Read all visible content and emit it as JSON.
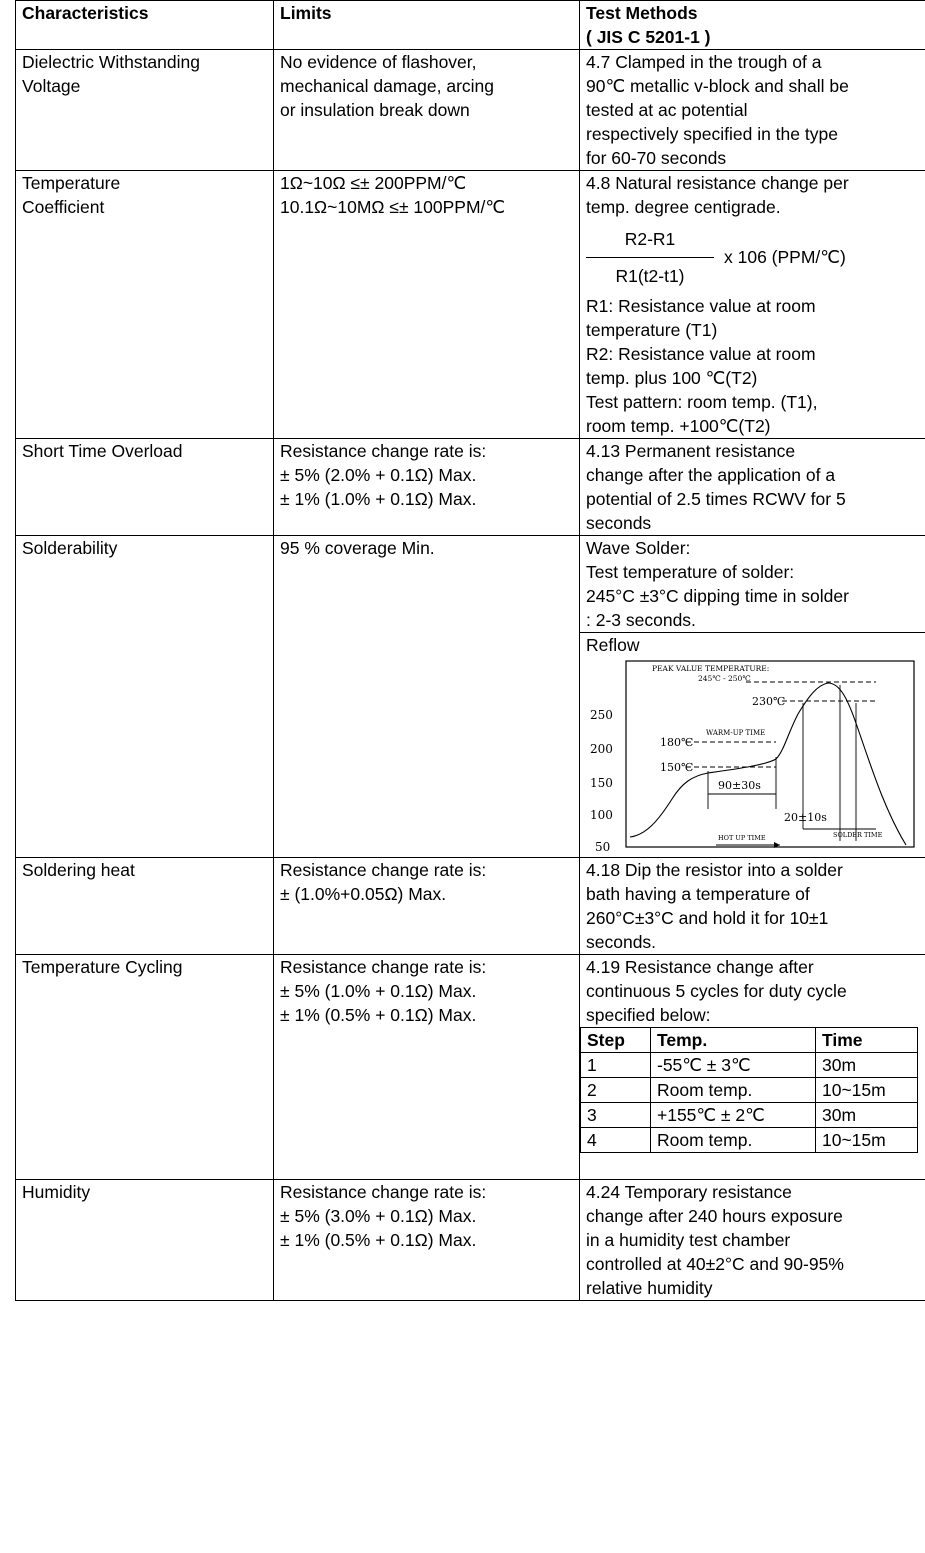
{
  "header": {
    "characteristics": "Characteristics",
    "limits": "Limits",
    "test_methods_1": "Test Methods",
    "test_methods_2": "( JIS C 5201-1 )"
  },
  "rows": {
    "dielectric": {
      "name": [
        "Dielectric Withstanding",
        "Voltage"
      ],
      "limits": [
        "No evidence of flashover,",
        "mechanical damage, arcing",
        "or insulation break down"
      ],
      "method": [
        "4.7 Clamped in the trough of a",
        "90℃ metallic v-block and shall be",
        "tested at ac potential",
        "respectively specified in the type",
        "for 60-70 seconds"
      ]
    },
    "tempcoef": {
      "name": [
        "Temperature",
        "Coefficient"
      ],
      "limits": [
        "1Ω~10Ω ≤± 200PPM/℃",
        "10.1Ω~10MΩ ≤± 100PPM/℃"
      ],
      "method_intro": [
        "4.8 Natural resistance change per",
        "temp. degree centigrade."
      ],
      "formula_num": "R2-R1",
      "formula_den": "R1(t2-t1)",
      "formula_mult": "x 106 (PPM/℃)",
      "method_rest": [
        "R1: Resistance value at room",
        "temperature (T1)",
        "R2: Resistance value at room",
        "temp. plus 100 ℃(T2)",
        "Test pattern: room temp. (T1),",
        "room temp. +100℃(T2)"
      ]
    },
    "overload": {
      "name": [
        "Short Time Overload"
      ],
      "limits": [
        "Resistance change rate is:",
        "± 5% (2.0% + 0.1Ω) Max.",
        "± 1% (1.0% + 0.1Ω) Max."
      ],
      "method": [
        "4.13 Permanent resistance",
        "change after the application of a",
        "potential of 2.5 times RCWV for 5",
        "seconds"
      ]
    },
    "solderability": {
      "name": [
        "Solderability"
      ],
      "limits": [
        "95 % coverage Min."
      ],
      "wave": [
        "Wave Solder:",
        "Test temperature of solder:",
        "245°C ±3°C dipping time in solder",
        ": 2-3 seconds."
      ],
      "reflow_label": "Reflow"
    },
    "solderheat": {
      "name": [
        "Soldering heat"
      ],
      "limits": [
        "Resistance change rate is:",
        "± (1.0%+0.05Ω) Max."
      ],
      "method": [
        "4.18 Dip the resistor into a solder",
        "bath having a temperature of",
        "260°C±3°C and hold it for 10±1",
        "seconds."
      ]
    },
    "cycling": {
      "name": [
        "Temperature Cycling"
      ],
      "limits": [
        "Resistance change rate is:",
        "± 5% (1.0% + 0.1Ω) Max.",
        "± 1% (0.5% + 0.1Ω) Max."
      ],
      "method": [
        "4.19 Resistance change after",
        "continuous 5 cycles for duty cycle",
        "specified below:"
      ],
      "step_table": {
        "headers": [
          "Step",
          "Temp.",
          "Time"
        ],
        "rows": [
          [
            "1",
            "-55℃ ± 3℃",
            "30m"
          ],
          [
            "2",
            "Room temp.",
            "10~15m"
          ],
          [
            "3",
            "+155℃ ± 2℃",
            "30m"
          ],
          [
            "4",
            "Room temp.",
            "10~15m"
          ]
        ]
      }
    },
    "humidity": {
      "name": [
        "Humidity"
      ],
      "limits": [
        "Resistance change rate is:",
        "± 5% (3.0% + 0.1Ω) Max.",
        "± 1% (0.5% + 0.1Ω) Max."
      ],
      "method": [
        "4.24 Temporary resistance",
        "change after 240 hours exposure",
        "in a humidity test chamber",
        "controlled at 40±2°C and 90-95%",
        "relative humidity"
      ]
    }
  },
  "reflow_chart": {
    "title": "PEAK VALUE TEMPERATURE:",
    "peak_range": "245℃ - 250℃",
    "label_230": "230℃",
    "label_180": "180℃",
    "label_150": "150℃",
    "warmup": "WARM-UP TIME",
    "hold_90": "90±30s",
    "hold_20": "20±10s",
    "hot_up": "HOT UP TIME",
    "solder_time": "SOLDER TIME",
    "y_ticks": [
      "250",
      "200",
      "150",
      "100",
      "50"
    ]
  }
}
